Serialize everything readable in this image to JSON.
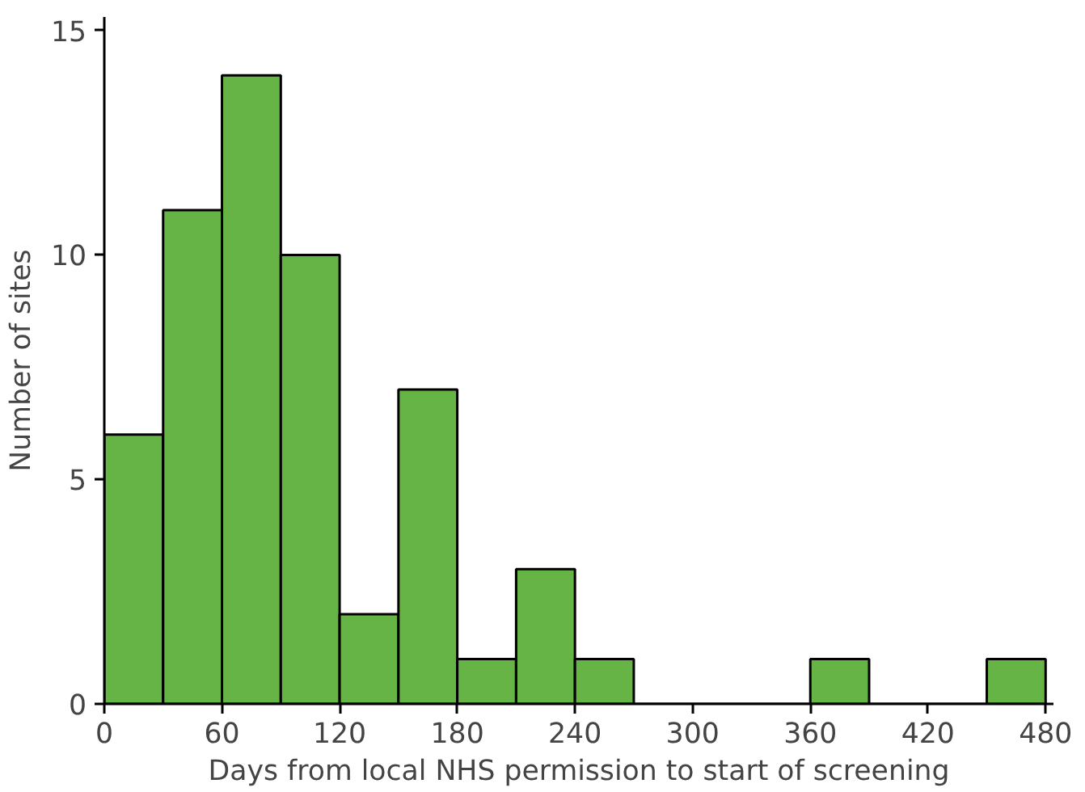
{
  "chart_data": {
    "type": "histogram",
    "xlabel": "Days from local NHS permission to start of screening",
    "ylabel": "Number of sites",
    "bins": [
      0,
      30,
      60,
      90,
      120,
      150,
      180,
      210,
      240,
      270,
      300,
      330,
      360,
      390,
      420,
      450,
      480
    ],
    "values": [
      6,
      11,
      14,
      10,
      2,
      7,
      1,
      3,
      1,
      0,
      0,
      0,
      1,
      0,
      0,
      1
    ],
    "color": "#66b445",
    "xlim": [
      0,
      484
    ],
    "ylim": [
      0,
      15.3
    ],
    "xticks": [
      0,
      60,
      120,
      180,
      240,
      300,
      360,
      420,
      480
    ],
    "yticks": [
      0,
      5,
      10,
      15
    ],
    "grid": false
  }
}
